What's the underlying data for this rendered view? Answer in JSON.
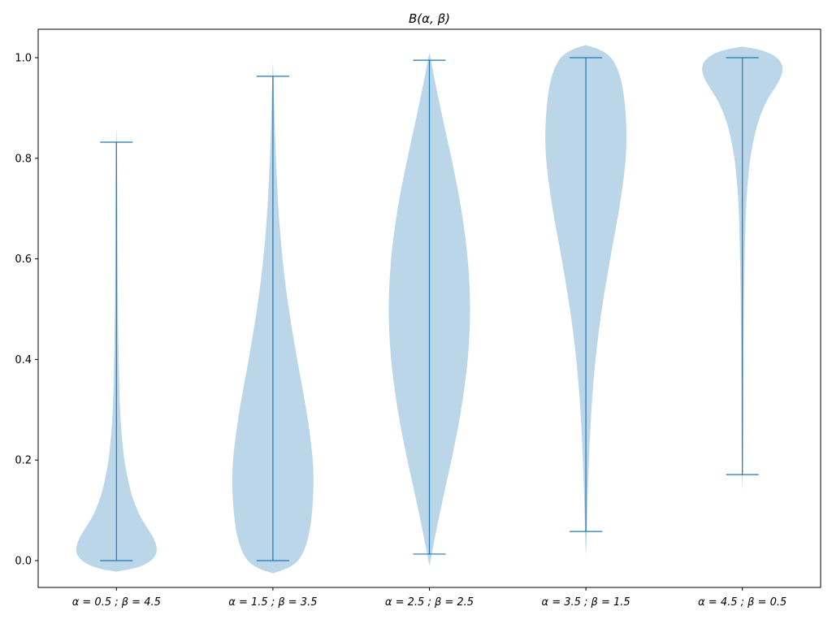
{
  "figure": {
    "background": "#ffffff",
    "line_color": "#1f77b4",
    "fill_color": "#1f77b4",
    "fill_opacity": 0.3,
    "axis_color": "#000000",
    "text_color": "#000000"
  },
  "chart_data": {
    "type": "violin",
    "title": "B(α, β)",
    "xlabel": "",
    "ylabel": "",
    "ylim": [
      -0.053,
      1.056
    ],
    "grid": false,
    "legend": "none",
    "yticks": [
      {
        "v": 0.0,
        "label": "0.0"
      },
      {
        "v": 0.2,
        "label": "0.2"
      },
      {
        "v": 0.4,
        "label": "0.4"
      },
      {
        "v": 0.6,
        "label": "0.6"
      },
      {
        "v": 0.8,
        "label": "0.8"
      },
      {
        "v": 1.0,
        "label": "1.0"
      }
    ],
    "categories": [
      "α = 0.5 ;  β = 4.5",
      "α = 1.5 ;  β = 3.5",
      "α = 2.5 ;  β = 2.5",
      "α = 3.5 ;  β = 1.5",
      "α = 4.5 ;  β = 0.5"
    ],
    "series": [
      {
        "label": "α = 0.5 ; β = 4.5",
        "distribution": "Beta(0.5, 4.5)",
        "whisker_min": 0.0,
        "whisker_max": 0.832,
        "mode": 0.02,
        "profile": [
          [
            -0.022,
            0.0
          ],
          [
            -0.016,
            0.45
          ],
          [
            -0.005,
            0.78
          ],
          [
            0.008,
            0.95
          ],
          [
            0.02,
            1.0
          ],
          [
            0.035,
            0.97
          ],
          [
            0.05,
            0.88
          ],
          [
            0.07,
            0.72
          ],
          [
            0.09,
            0.57
          ],
          [
            0.115,
            0.44
          ],
          [
            0.14,
            0.34
          ],
          [
            0.17,
            0.26
          ],
          [
            0.2,
            0.19
          ],
          [
            0.24,
            0.14
          ],
          [
            0.28,
            0.1
          ],
          [
            0.33,
            0.075
          ],
          [
            0.4,
            0.055
          ],
          [
            0.48,
            0.04
          ],
          [
            0.56,
            0.03
          ],
          [
            0.65,
            0.024
          ],
          [
            0.74,
            0.02
          ],
          [
            0.8,
            0.016
          ],
          [
            0.84,
            0.008
          ],
          [
            0.86,
            0.0
          ]
        ]
      },
      {
        "label": "α = 1.5 ; β = 3.5",
        "distribution": "Beta(1.5, 3.5)",
        "whisker_min": 0.0,
        "whisker_max": 0.963,
        "mode": 0.17,
        "profile": [
          [
            -0.025,
            0.0
          ],
          [
            -0.018,
            0.3
          ],
          [
            -0.008,
            0.52
          ],
          [
            0.005,
            0.68
          ],
          [
            0.03,
            0.82
          ],
          [
            0.06,
            0.91
          ],
          [
            0.1,
            0.97
          ],
          [
            0.14,
            1.0
          ],
          [
            0.18,
            1.0
          ],
          [
            0.22,
            0.96
          ],
          [
            0.27,
            0.88
          ],
          [
            0.32,
            0.78
          ],
          [
            0.38,
            0.64
          ],
          [
            0.44,
            0.51
          ],
          [
            0.5,
            0.39
          ],
          [
            0.56,
            0.29
          ],
          [
            0.62,
            0.21
          ],
          [
            0.68,
            0.15
          ],
          [
            0.75,
            0.1
          ],
          [
            0.82,
            0.065
          ],
          [
            0.88,
            0.04
          ],
          [
            0.93,
            0.025
          ],
          [
            0.97,
            0.012
          ],
          [
            0.99,
            0.0
          ]
        ]
      },
      {
        "label": "α = 2.5 ; β = 2.5",
        "distribution": "Beta(2.5, 2.5)",
        "whisker_min": 0.013,
        "whisker_max": 0.995,
        "mode": 0.5,
        "profile": [
          [
            -0.01,
            0.0
          ],
          [
            0.01,
            0.05
          ],
          [
            0.04,
            0.12
          ],
          [
            0.08,
            0.22
          ],
          [
            0.13,
            0.35
          ],
          [
            0.18,
            0.49
          ],
          [
            0.23,
            0.62
          ],
          [
            0.28,
            0.74
          ],
          [
            0.33,
            0.84
          ],
          [
            0.38,
            0.92
          ],
          [
            0.43,
            0.975
          ],
          [
            0.48,
            1.0
          ],
          [
            0.52,
            1.0
          ],
          [
            0.57,
            0.975
          ],
          [
            0.62,
            0.92
          ],
          [
            0.67,
            0.84
          ],
          [
            0.72,
            0.74
          ],
          [
            0.77,
            0.62
          ],
          [
            0.82,
            0.49
          ],
          [
            0.87,
            0.35
          ],
          [
            0.92,
            0.22
          ],
          [
            0.96,
            0.12
          ],
          [
            0.99,
            0.05
          ],
          [
            1.01,
            0.0
          ]
        ]
      },
      {
        "label": "α = 3.5 ; β = 1.5",
        "distribution": "Beta(3.5, 1.5)",
        "whisker_min": 0.058,
        "whisker_max": 1.0,
        "mode": 0.83,
        "profile": [
          [
            0.01,
            0.0
          ],
          [
            0.03,
            0.012
          ],
          [
            0.07,
            0.025
          ],
          [
            0.12,
            0.04
          ],
          [
            0.18,
            0.065
          ],
          [
            0.25,
            0.1
          ],
          [
            0.32,
            0.15
          ],
          [
            0.38,
            0.21
          ],
          [
            0.44,
            0.29
          ],
          [
            0.5,
            0.39
          ],
          [
            0.56,
            0.51
          ],
          [
            0.62,
            0.64
          ],
          [
            0.68,
            0.78
          ],
          [
            0.73,
            0.88
          ],
          [
            0.78,
            0.96
          ],
          [
            0.82,
            1.0
          ],
          [
            0.86,
            1.0
          ],
          [
            0.9,
            0.97
          ],
          [
            0.94,
            0.91
          ],
          [
            0.97,
            0.82
          ],
          [
            0.995,
            0.68
          ],
          [
            1.008,
            0.52
          ],
          [
            1.018,
            0.3
          ],
          [
            1.025,
            0.0
          ]
        ]
      },
      {
        "label": "α = 4.5 ; β = 0.5",
        "distribution": "Beta(4.5, 0.5)",
        "whisker_min": 0.171,
        "whisker_max": 1.0,
        "mode": 0.98,
        "profile": [
          [
            0.14,
            0.0
          ],
          [
            0.16,
            0.008
          ],
          [
            0.2,
            0.016
          ],
          [
            0.26,
            0.02
          ],
          [
            0.35,
            0.024
          ],
          [
            0.44,
            0.03
          ],
          [
            0.52,
            0.04
          ],
          [
            0.6,
            0.055
          ],
          [
            0.67,
            0.075
          ],
          [
            0.72,
            0.1
          ],
          [
            0.76,
            0.14
          ],
          [
            0.8,
            0.19
          ],
          [
            0.83,
            0.26
          ],
          [
            0.86,
            0.34
          ],
          [
            0.885,
            0.44
          ],
          [
            0.91,
            0.57
          ],
          [
            0.93,
            0.72
          ],
          [
            0.95,
            0.88
          ],
          [
            0.965,
            0.97
          ],
          [
            0.98,
            1.0
          ],
          [
            0.992,
            0.95
          ],
          [
            1.005,
            0.78
          ],
          [
            1.016,
            0.45
          ],
          [
            1.022,
            0.0
          ]
        ]
      }
    ]
  }
}
